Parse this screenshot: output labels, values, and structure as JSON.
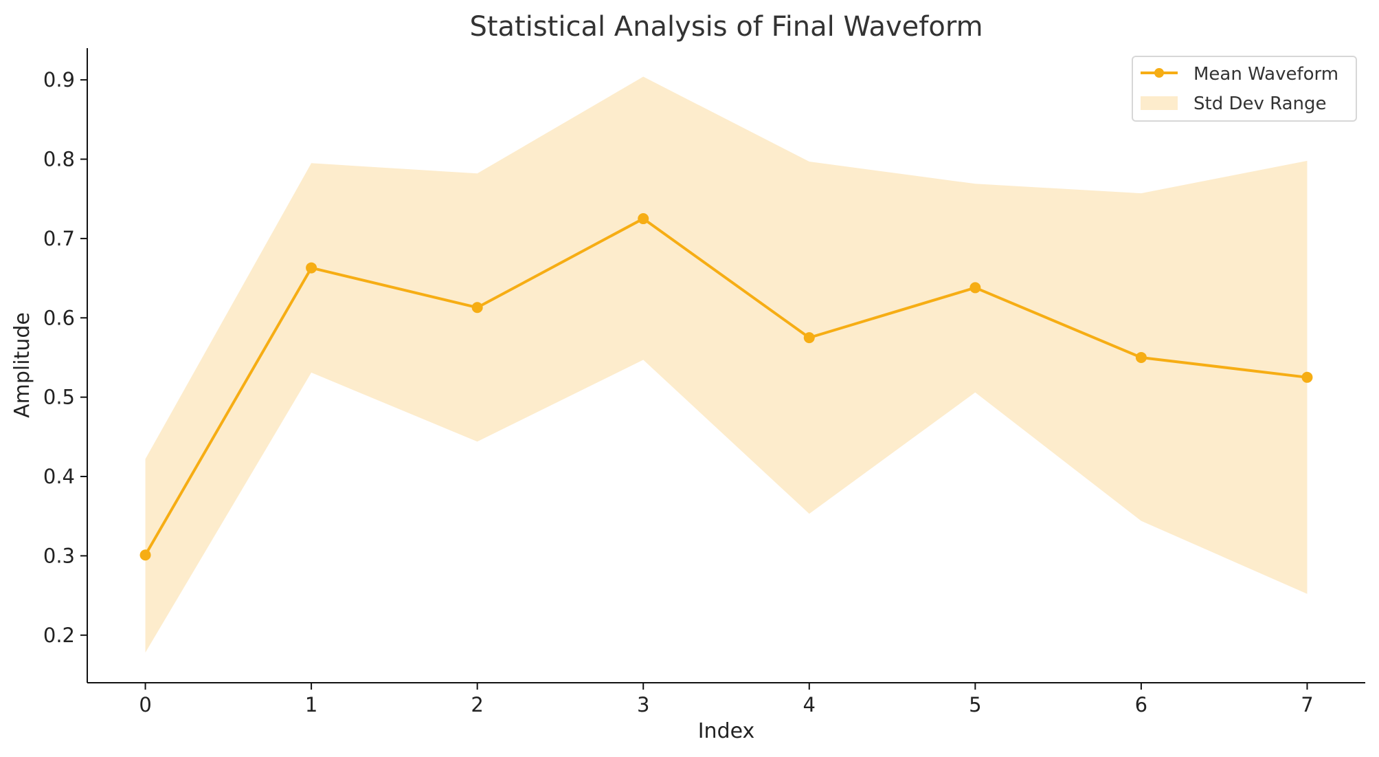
{
  "chart_data": {
    "type": "line",
    "title": "Statistical Analysis of Final Waveform",
    "xlabel": "Index",
    "ylabel": "Amplitude",
    "x": [
      0,
      1,
      2,
      3,
      4,
      5,
      6,
      7
    ],
    "xlim": [
      -0.35,
      7.35
    ],
    "ylim": [
      0.14,
      0.94
    ],
    "xticks": [
      0,
      1,
      2,
      3,
      4,
      5,
      6,
      7
    ],
    "yticks": [
      0.2,
      0.3,
      0.4,
      0.5,
      0.6,
      0.7,
      0.8,
      0.9
    ],
    "series": [
      {
        "name": "Mean Waveform",
        "values": [
          0.301,
          0.663,
          0.613,
          0.725,
          0.575,
          0.638,
          0.55,
          0.525
        ],
        "color": "#f6ad14",
        "markers": true
      }
    ],
    "bands": [
      {
        "name": "Std Dev Range",
        "lower": [
          0.178,
          0.531,
          0.444,
          0.547,
          0.353,
          0.506,
          0.344,
          0.252
        ],
        "upper": [
          0.422,
          0.795,
          0.782,
          0.904,
          0.797,
          0.769,
          0.757,
          0.798
        ],
        "color": "#fdeccc"
      }
    ],
    "legend": {
      "position": "top-right",
      "entries": [
        "Mean Waveform",
        "Std Dev Range"
      ]
    },
    "grid": false
  }
}
